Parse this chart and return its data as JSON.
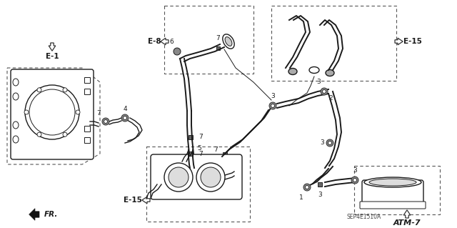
{
  "bg_color": "#ffffff",
  "line_color": "#1a1a1a",
  "dash_color": "#555555",
  "fig_width": 6.4,
  "fig_height": 3.19,
  "dpi": 100,
  "labels": {
    "E1": "E-1",
    "E8": "E-8",
    "E15_top": "E-15",
    "E15_bot": "E-15",
    "ATM7": "ATM-7",
    "FR": "FR.",
    "part_num": "SEP4E1510A",
    "n1": "1",
    "n2": "2",
    "n3": "3",
    "n4": "4",
    "n5": "5",
    "n6": "6",
    "n7": "7"
  }
}
